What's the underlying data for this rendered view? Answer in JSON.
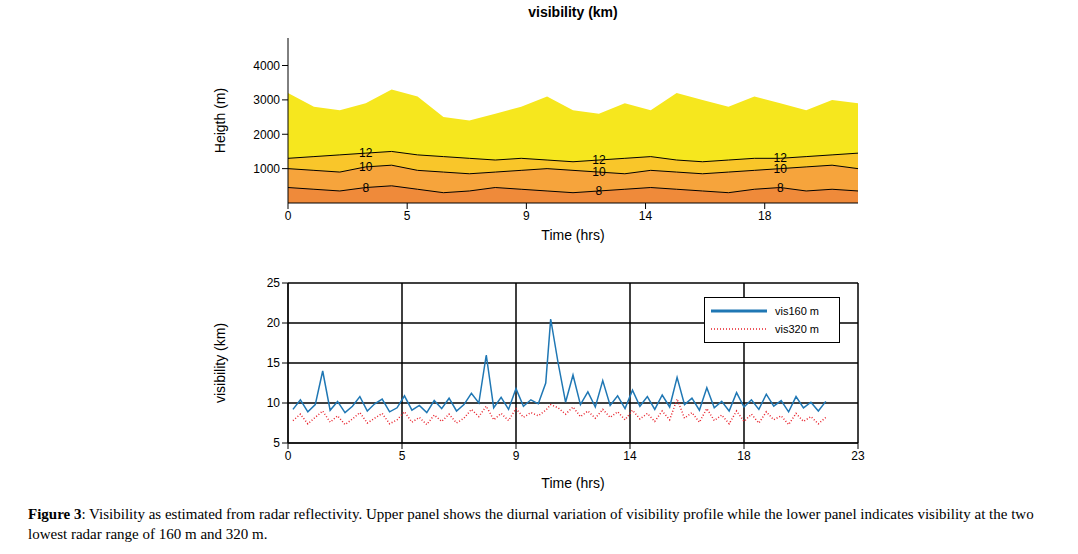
{
  "chart_data": [
    {
      "type": "area",
      "title": "visibility (km)",
      "x_label": "Time (hrs)",
      "y_label": "Heigth (m)",
      "x": [
        0,
        1,
        2,
        3,
        4,
        5,
        6,
        7,
        8,
        9,
        10,
        11,
        12,
        13,
        14,
        15,
        16,
        17,
        18,
        19,
        20,
        21,
        22
      ],
      "xlim": [
        0,
        22
      ],
      "xticks": [
        0,
        {
          "value": 4.6,
          "label": "5"
        },
        {
          "value": 9.2,
          "label": "9"
        },
        {
          "value": 13.8,
          "label": "14"
        },
        {
          "value": 18.4,
          "label": "18"
        }
      ],
      "ylim": [
        0,
        4800
      ],
      "yticks": [
        1000,
        2000,
        3000,
        4000
      ],
      "grid": false,
      "series": [
        {
          "color": "#f6e71e",
          "values": [
            3200,
            2800,
            2700,
            2900,
            3300,
            3100,
            2500,
            2400,
            2600,
            2800,
            3100,
            2700,
            2600,
            2900,
            2700,
            3200,
            3000,
            2800,
            3100,
            2900,
            2700,
            3000,
            2900
          ]
        },
        {
          "name": "12",
          "color": "#f9c62a",
          "values": [
            1300,
            1350,
            1400,
            1450,
            1500,
            1400,
            1350,
            1300,
            1250,
            1300,
            1250,
            1200,
            1250,
            1300,
            1350,
            1250,
            1200,
            1250,
            1300,
            1300,
            1350,
            1400,
            1450
          ]
        },
        {
          "name": "10",
          "color": "#f6a43c",
          "values": [
            1000,
            950,
            900,
            1050,
            1100,
            950,
            900,
            850,
            900,
            950,
            1000,
            950,
            900,
            850,
            950,
            900,
            850,
            900,
            950,
            1000,
            1050,
            1100,
            1000
          ]
        },
        {
          "name": "8",
          "color": "#ef8a3a",
          "values": [
            450,
            400,
            350,
            450,
            500,
            400,
            300,
            350,
            450,
            400,
            350,
            300,
            350,
            400,
            450,
            400,
            350,
            300,
            400,
            450,
            350,
            400,
            350
          ]
        }
      ]
    },
    {
      "type": "line",
      "x_label": "Time (hrs)",
      "y_label": "visibility (km)",
      "x": [
        0.2,
        0.5,
        0.8,
        1.1,
        1.4,
        1.7,
        2.0,
        2.3,
        2.6,
        2.9,
        3.2,
        3.5,
        3.8,
        4.1,
        4.4,
        4.7,
        5.0,
        5.3,
        5.6,
        5.9,
        6.2,
        6.5,
        6.8,
        7.1,
        7.4,
        7.7,
        8.0,
        8.3,
        8.6,
        8.9,
        9.2,
        9.5,
        9.8,
        10.1,
        10.4,
        10.6,
        10.9,
        11.2,
        11.5,
        11.8,
        12.1,
        12.4,
        12.7,
        13.0,
        13.3,
        13.6,
        13.9,
        14.2,
        14.5,
        14.8,
        15.1,
        15.4,
        15.7,
        16.0,
        16.3,
        16.6,
        16.9,
        17.2,
        17.5,
        17.8,
        18.1,
        18.4,
        18.7,
        19.0,
        19.3,
        19.6,
        19.9,
        20.2,
        20.5,
        20.8,
        21.1,
        21.4,
        21.7
      ],
      "xlim": [
        0,
        23
      ],
      "xticks": [
        0,
        {
          "value": 4.6,
          "label": "5"
        },
        {
          "value": 9.2,
          "label": "9"
        },
        {
          "value": 13.8,
          "label": "14"
        },
        {
          "value": 18.4,
          "label": "18"
        },
        23
      ],
      "ylim": [
        5,
        25
      ],
      "yticks": [
        5,
        10,
        15,
        20,
        25
      ],
      "grid": true,
      "legend": "upper right",
      "series": [
        {
          "name": "vis160 m",
          "color": "#1f77b4",
          "line_style": "solid",
          "values": [
            9.2,
            10.4,
            8.9,
            9.8,
            14.0,
            9.1,
            10.2,
            8.8,
            9.6,
            10.8,
            9.0,
            9.9,
            10.5,
            8.9,
            9.4,
            10.9,
            9.1,
            9.7,
            8.8,
            10.3,
            9.3,
            10.6,
            9.0,
            9.8,
            11.2,
            10.0,
            16.0,
            9.4,
            10.7,
            9.2,
            11.8,
            9.6,
            10.4,
            9.9,
            12.5,
            20.5,
            15.0,
            10.1,
            13.5,
            9.8,
            11.4,
            9.5,
            12.8,
            9.7,
            10.9,
            9.3,
            11.6,
            9.6,
            10.8,
            9.2,
            11.0,
            9.5,
            13.2,
            9.8,
            10.6,
            9.1,
            11.9,
            9.4,
            10.2,
            9.0,
            11.3,
            9.5,
            10.4,
            9.2,
            11.1,
            9.6,
            10.3,
            8.9,
            10.8,
            9.4,
            10.1,
            9.0,
            10.2
          ]
        },
        {
          "name": "vis320 m",
          "color": "#e8212b",
          "line_style": "dotted",
          "values": [
            7.8,
            8.6,
            7.4,
            8.2,
            9.0,
            7.6,
            8.4,
            7.3,
            8.0,
            8.8,
            7.5,
            8.1,
            8.7,
            7.4,
            7.9,
            8.9,
            7.6,
            8.2,
            7.3,
            8.5,
            7.7,
            8.6,
            7.5,
            8.1,
            9.2,
            8.3,
            9.6,
            7.9,
            8.7,
            7.8,
            9.3,
            8.2,
            8.8,
            8.4,
            9.1,
            9.8,
            9.4,
            8.6,
            9.5,
            8.3,
            9.0,
            8.1,
            9.2,
            8.2,
            8.9,
            7.9,
            9.1,
            8.0,
            8.7,
            7.7,
            9.0,
            7.9,
            10.5,
            8.1,
            8.8,
            7.6,
            9.3,
            7.8,
            8.5,
            7.4,
            9.0,
            7.7,
            8.6,
            7.5,
            8.9,
            7.9,
            8.4,
            7.3,
            8.7,
            7.7,
            8.3,
            7.4,
            8.2
          ]
        }
      ]
    }
  ],
  "caption": {
    "label": "Figure 3",
    "text": ": Visibility as estimated from radar reflectivity. Upper panel shows the diurnal variation of visibility profile while the lower panel indicates visibility at the two lowest radar range of 160 m and 320 m."
  }
}
